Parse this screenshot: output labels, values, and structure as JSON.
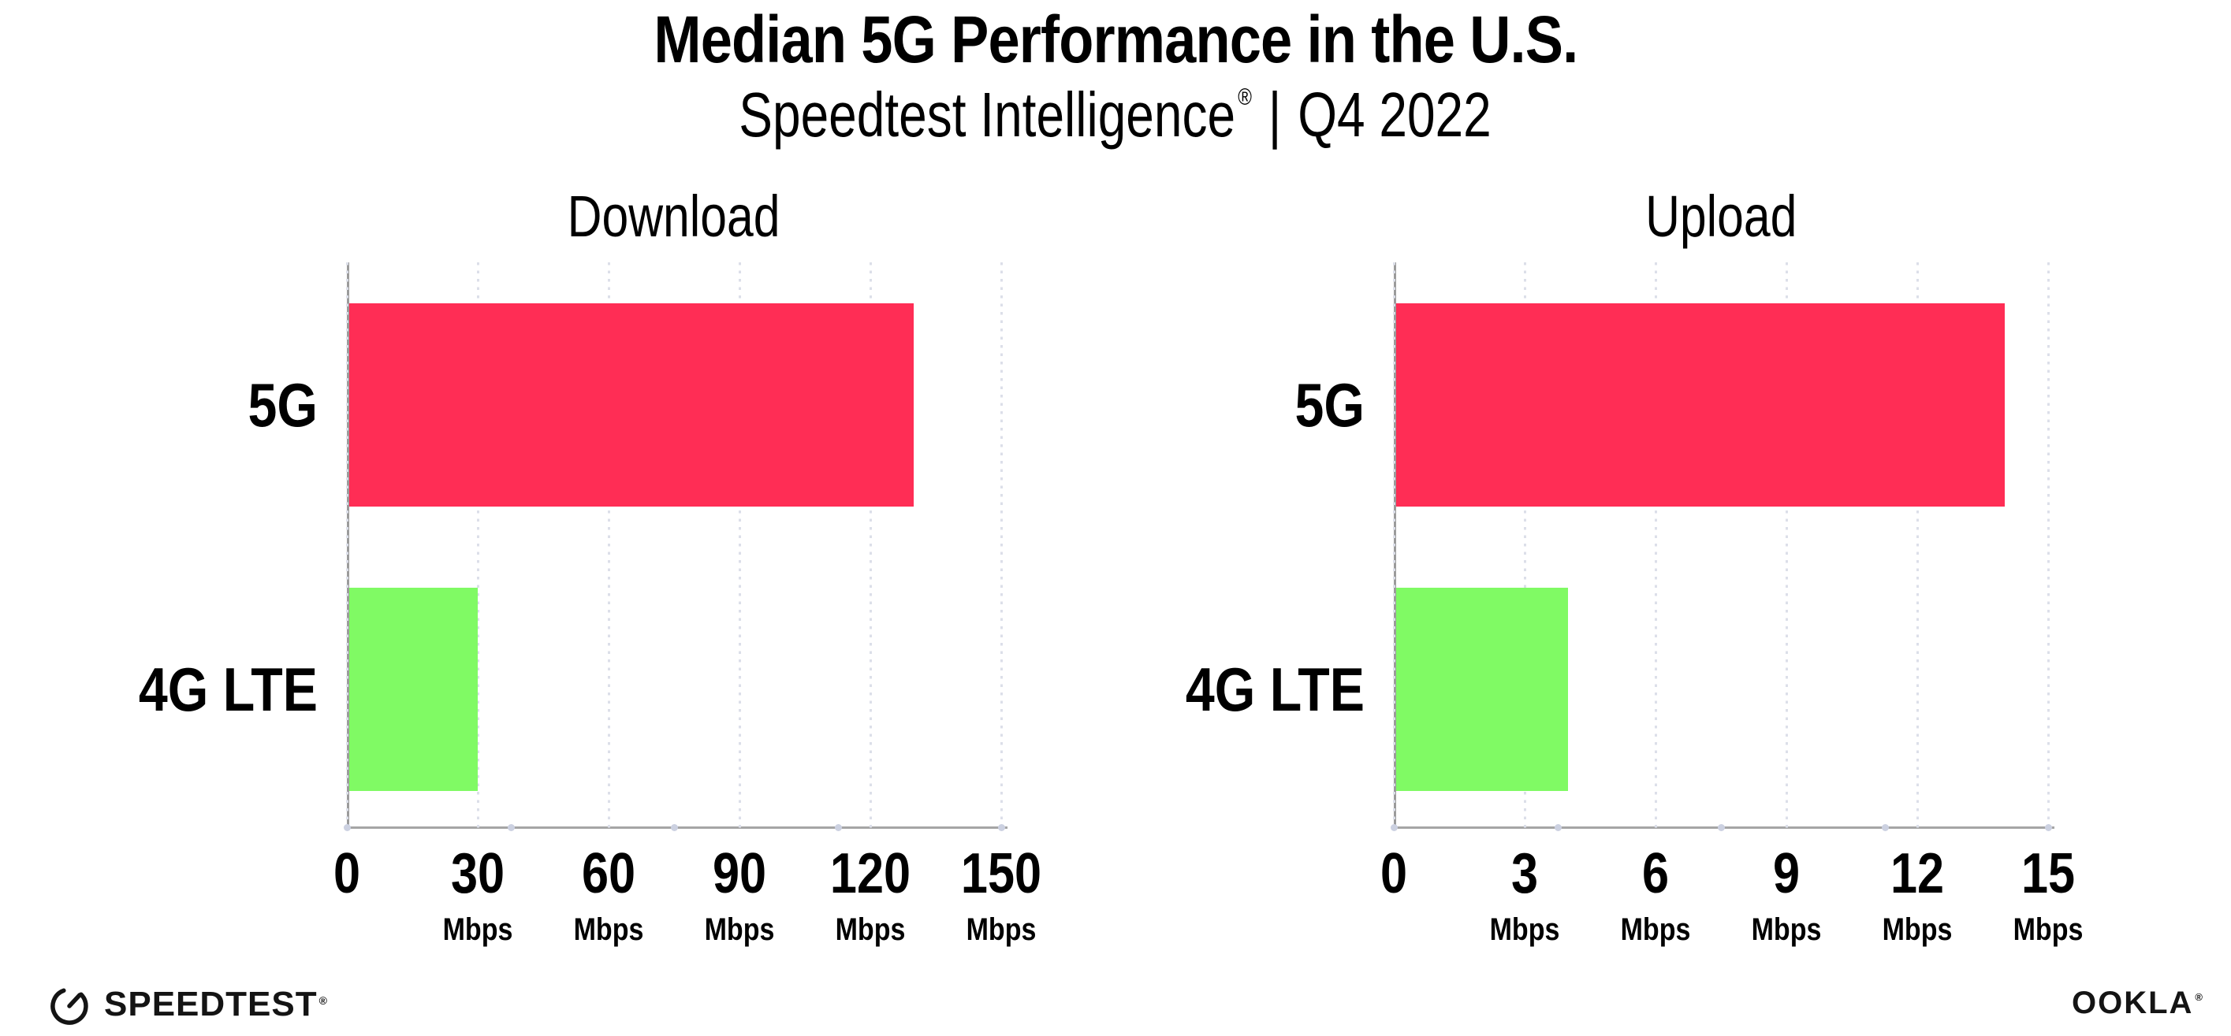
{
  "title": "Median 5G Performance in the U.S.",
  "subtitle": {
    "brand": "Speedtest Intelligence",
    "registered": "®",
    "separator": "|",
    "period": "Q4 2022"
  },
  "colors": {
    "bar_5g": "#FF2D55",
    "bar_4g_lte": "#80FA64",
    "axis_line": "#9B9B9B",
    "grid_dot": "#DCDFE9",
    "axis_quarter_dot": "#CCD1E1",
    "text": "#000000"
  },
  "chart_data": [
    {
      "type": "bar",
      "orientation": "horizontal",
      "title": "Download",
      "categories": [
        "5G",
        "4G LTE"
      ],
      "values": [
        130,
        30
      ],
      "unit": "Mbps",
      "xlim": [
        0,
        150
      ],
      "xticks": [
        0,
        30,
        60,
        90,
        120,
        150
      ],
      "xtick_unit_label": "Mbps",
      "grid": "dotted vertical gridlines, no unit label under 0",
      "legend": "none",
      "bar_colors": [
        "#FF2D55",
        "#80FA64"
      ]
    },
    {
      "type": "bar",
      "orientation": "horizontal",
      "title": "Upload",
      "categories": [
        "5G",
        "4G LTE"
      ],
      "values": [
        14,
        4
      ],
      "unit": "Mbps",
      "xlim": [
        0,
        15
      ],
      "xticks": [
        0,
        3,
        6,
        9,
        12,
        15
      ],
      "xtick_unit_label": "Mbps",
      "grid": "dotted vertical gridlines, no unit label under 0",
      "legend": "none",
      "bar_colors": [
        "#FF2D55",
        "#80FA64"
      ]
    }
  ],
  "footer": {
    "speedtest_icon": "gauge-icon",
    "speedtest_wordmark": "SPEEDTEST",
    "speedtest_registered": "®",
    "ookla_wordmark": "OOKLA",
    "ookla_registered": "®"
  }
}
